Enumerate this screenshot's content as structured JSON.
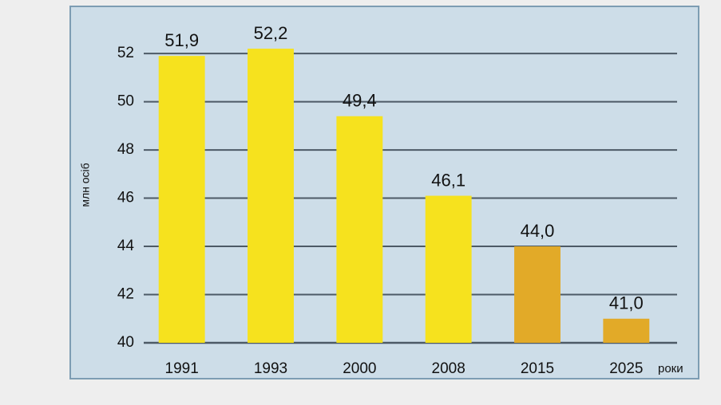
{
  "chart_data": {
    "type": "bar",
    "y_label": "млн осіб",
    "x_label": "роки",
    "categories": [
      "1991",
      "1993",
      "2000",
      "2008",
      "2015",
      "2025"
    ],
    "values": [
      51.9,
      52.2,
      49.4,
      46.1,
      44.0,
      41.0
    ],
    "value_labels": [
      "51,9",
      "52,2",
      "49,4",
      "46,1",
      "44,0",
      "41,0"
    ],
    "colors": [
      "#f6e21e",
      "#f6e21e",
      "#f6e21e",
      "#f6e21e",
      "#e2aa28",
      "#e2aa28"
    ],
    "ylim": [
      40,
      52.5
    ],
    "yticks": [
      40,
      42,
      44,
      46,
      48,
      50,
      52
    ],
    "grid": true
  }
}
